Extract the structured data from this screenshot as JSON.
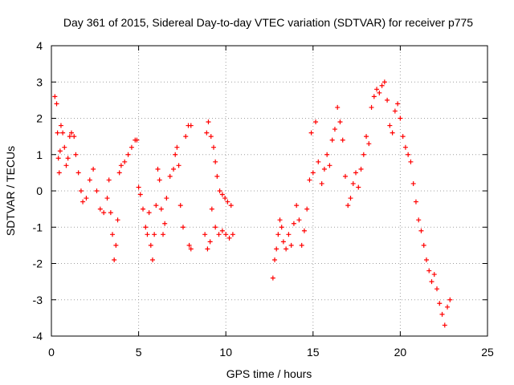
{
  "chart_data": {
    "type": "scatter",
    "title": "Day 361 of 2015, Sidereal Day-to-day VTEC variation (SDTVAR) for receiver p775",
    "xlabel": "GPS time / hours",
    "ylabel": "SDTVAR / TECUs",
    "xlim": [
      0,
      25
    ],
    "ylim": [
      -4,
      4
    ],
    "xticks": [
      0,
      5,
      10,
      15,
      20,
      25
    ],
    "yticks": [
      -4,
      -3,
      -2,
      -1,
      0,
      1,
      2,
      3,
      4
    ],
    "grid": true,
    "marker": "+",
    "color": "#ff0000",
    "series": [
      {
        "name": "SDTVAR",
        "trace": [
          [
            0.2,
            2.6
          ],
          [
            0.3,
            2.4
          ],
          [
            0.35,
            1.6
          ],
          [
            0.4,
            0.9
          ],
          [
            0.45,
            0.5
          ],
          [
            0.5,
            1.1
          ],
          [
            0.55,
            1.8
          ],
          [
            0.65,
            1.6
          ],
          [
            0.75,
            1.2
          ],
          [
            0.85,
            0.7
          ],
          [
            0.95,
            0.9
          ],
          [
            1.05,
            1.5
          ],
          [
            1.15,
            1.6
          ],
          [
            1.3,
            1.5
          ],
          [
            1.4,
            1.0
          ],
          [
            1.55,
            0.5
          ],
          [
            1.7,
            0.0
          ],
          [
            1.8,
            -0.3
          ],
          [
            2.0,
            -0.2
          ],
          [
            2.2,
            0.3
          ],
          [
            2.4,
            0.6
          ],
          [
            2.6,
            0.0
          ],
          [
            2.8,
            -0.5
          ],
          [
            3.0,
            -0.6
          ],
          [
            3.2,
            -0.2
          ],
          [
            3.3,
            0.3
          ],
          [
            3.4,
            -0.6
          ],
          [
            3.5,
            -1.2
          ],
          [
            3.6,
            -1.9
          ],
          [
            3.7,
            -1.5
          ],
          [
            3.8,
            -0.8
          ],
          [
            3.9,
            0.5
          ],
          [
            4.0,
            0.7
          ],
          [
            4.2,
            0.8
          ],
          [
            4.4,
            1.0
          ],
          [
            4.6,
            1.2
          ],
          [
            4.8,
            1.4
          ],
          [
            4.9,
            1.4
          ],
          [
            5.0,
            0.1
          ],
          [
            5.1,
            -0.1
          ],
          [
            5.25,
            -0.5
          ],
          [
            5.4,
            -1.0
          ],
          [
            5.5,
            -1.2
          ],
          [
            5.6,
            -0.6
          ],
          [
            5.7,
            -1.5
          ],
          [
            5.8,
            -1.9
          ],
          [
            5.9,
            -1.2
          ],
          [
            6.0,
            -0.4
          ],
          [
            6.1,
            0.6
          ],
          [
            6.2,
            0.3
          ],
          [
            6.3,
            -0.5
          ],
          [
            6.4,
            -1.2
          ],
          [
            6.5,
            -0.9
          ],
          [
            6.6,
            -0.2
          ],
          [
            6.8,
            0.4
          ],
          [
            7.0,
            0.6
          ],
          [
            7.1,
            1.0
          ],
          [
            7.2,
            1.2
          ],
          [
            7.3,
            0.7
          ],
          [
            7.4,
            -0.4
          ],
          [
            7.55,
            -1.0
          ],
          [
            7.7,
            1.5
          ],
          [
            7.85,
            1.8
          ],
          [
            8.0,
            1.8
          ],
          [
            7.9,
            -1.5
          ],
          [
            8.0,
            -1.6
          ],
          [
            8.8,
            -1.2
          ],
          [
            8.9,
            1.6
          ],
          [
            9.0,
            1.9
          ],
          [
            9.15,
            1.5
          ],
          [
            9.3,
            1.2
          ],
          [
            9.4,
            0.8
          ],
          [
            9.5,
            0.4
          ],
          [
            9.65,
            0.0
          ],
          [
            9.8,
            -0.1
          ],
          [
            9.95,
            -0.2
          ],
          [
            10.1,
            -0.3
          ],
          [
            10.3,
            -0.4
          ],
          [
            9.2,
            -0.5
          ],
          [
            9.4,
            -1.0
          ],
          [
            9.6,
            -1.2
          ],
          [
            9.8,
            -1.1
          ],
          [
            10.0,
            -1.2
          ],
          [
            10.2,
            -1.3
          ],
          [
            10.4,
            -1.2
          ],
          [
            9.1,
            -1.4
          ],
          [
            8.95,
            -1.6
          ],
          [
            12.7,
            -2.4
          ],
          [
            12.8,
            -1.9
          ],
          [
            12.9,
            -1.6
          ],
          [
            13.0,
            -1.2
          ],
          [
            13.1,
            -0.8
          ],
          [
            13.2,
            -1.0
          ],
          [
            13.3,
            -1.4
          ],
          [
            13.45,
            -1.6
          ],
          [
            13.6,
            -1.2
          ],
          [
            13.75,
            -1.5
          ],
          [
            13.9,
            -0.9
          ],
          [
            14.05,
            -0.4
          ],
          [
            14.2,
            -0.8
          ],
          [
            14.35,
            -1.5
          ],
          [
            14.5,
            -1.1
          ],
          [
            14.65,
            -0.5
          ],
          [
            14.8,
            0.3
          ],
          [
            14.9,
            1.6
          ],
          [
            15.0,
            0.5
          ],
          [
            15.15,
            1.9
          ],
          [
            15.3,
            0.8
          ],
          [
            15.5,
            0.2
          ],
          [
            15.65,
            0.6
          ],
          [
            15.8,
            1.0
          ],
          [
            15.95,
            0.7
          ],
          [
            16.1,
            1.4
          ],
          [
            16.25,
            1.7
          ],
          [
            16.4,
            2.3
          ],
          [
            16.55,
            1.9
          ],
          [
            16.7,
            1.4
          ],
          [
            16.85,
            0.4
          ],
          [
            17.0,
            -0.4
          ],
          [
            17.15,
            -0.2
          ],
          [
            17.3,
            0.2
          ],
          [
            17.45,
            0.5
          ],
          [
            17.6,
            0.1
          ],
          [
            17.75,
            0.6
          ],
          [
            17.9,
            1.0
          ],
          [
            18.05,
            1.5
          ],
          [
            18.2,
            1.3
          ],
          [
            18.35,
            2.3
          ],
          [
            18.5,
            2.6
          ],
          [
            18.65,
            2.8
          ],
          [
            18.8,
            2.7
          ],
          [
            18.95,
            2.9
          ],
          [
            19.1,
            3.0
          ],
          [
            19.25,
            2.5
          ],
          [
            19.4,
            1.8
          ],
          [
            19.55,
            1.6
          ],
          [
            19.7,
            2.2
          ],
          [
            19.85,
            2.4
          ],
          [
            20.0,
            2.0
          ],
          [
            20.15,
            1.5
          ],
          [
            20.3,
            1.2
          ],
          [
            20.45,
            1.0
          ],
          [
            20.6,
            0.8
          ],
          [
            20.75,
            0.2
          ],
          [
            20.9,
            -0.3
          ],
          [
            21.05,
            -0.8
          ],
          [
            21.2,
            -1.1
          ],
          [
            21.35,
            -1.5
          ],
          [
            21.5,
            -1.9
          ],
          [
            21.65,
            -2.2
          ],
          [
            21.8,
            -2.5
          ],
          [
            21.95,
            -2.3
          ],
          [
            22.1,
            -2.7
          ],
          [
            22.25,
            -3.1
          ],
          [
            22.4,
            -3.4
          ],
          [
            22.55,
            -3.7
          ],
          [
            22.7,
            -3.2
          ],
          [
            22.85,
            -3.0
          ]
        ]
      }
    ]
  }
}
